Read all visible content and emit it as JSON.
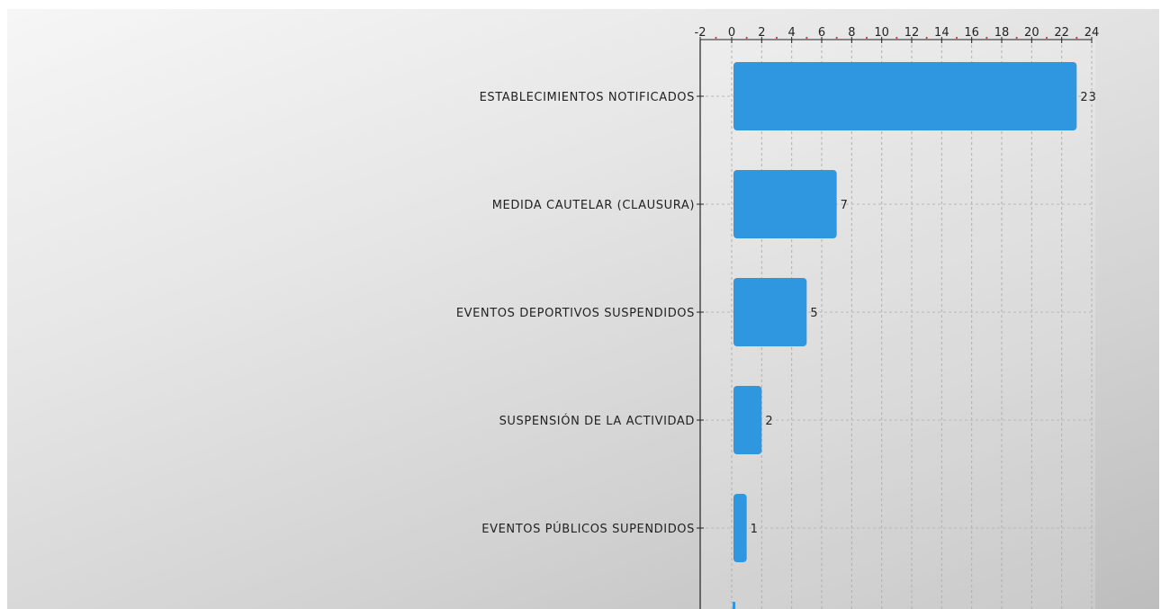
{
  "chart_data": {
    "type": "bar",
    "orientation": "horizontal",
    "title": "",
    "xlabel": "",
    "ylabel": "",
    "xlim": [
      -2,
      24
    ],
    "x_ticks": [
      -2,
      0,
      2,
      4,
      6,
      8,
      10,
      12,
      14,
      16,
      18,
      20,
      22,
      24
    ],
    "x_axis_position": "top",
    "grid": true,
    "legend": "none",
    "bar_color": "#2f96e0",
    "categories": [
      "ESTABLECIMIENTOS NOTIFICADOS",
      "MEDIDA CAUTELAR (CLAUSURA)",
      "EVENTOS DEPORTIVOS SUSPENDIDOS",
      "SUSPENSIÓN DE LA ACTIVIDAD",
      "EVENTOS PÚBLICOS SUPENDIDOS"
    ],
    "values": [
      23,
      7,
      5,
      2,
      1
    ],
    "data_labels": [
      "23",
      "7",
      "5",
      "2",
      "1"
    ],
    "partially_visible_bar_value": 0
  }
}
